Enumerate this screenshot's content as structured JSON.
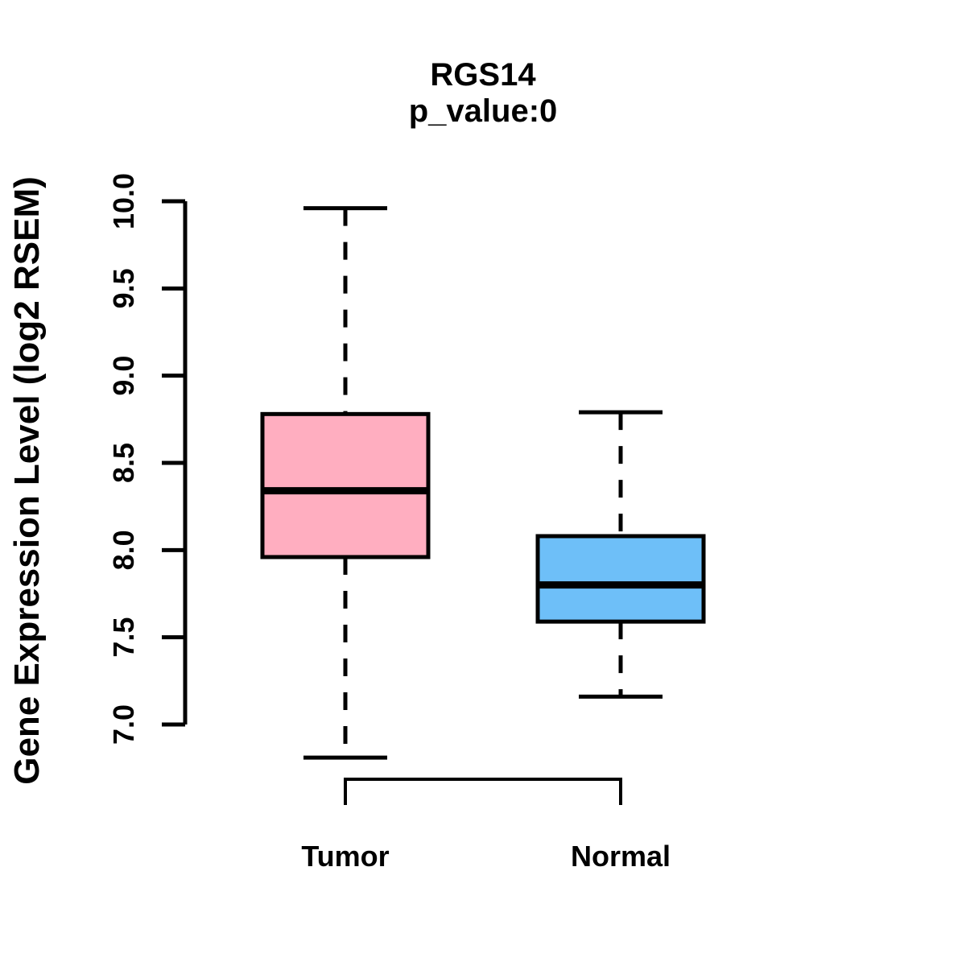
{
  "figure": {
    "title": "RGS14",
    "subtitle": "p_value:0",
    "y_axis_label": "Gene Expression Level (log2 RSEM)"
  },
  "chart_data": {
    "type": "boxplot",
    "title": "RGS14",
    "subtitle": "p_value:0",
    "ylabel": "Gene Expression Level (log2 RSEM)",
    "xlabel": "",
    "categories": [
      "Tumor",
      "Normal"
    ],
    "ylim": [
      7.0,
      10.0
    ],
    "yticks": [
      7.0,
      7.5,
      8.0,
      8.5,
      9.0,
      9.5,
      10.0
    ],
    "grid": false,
    "legend": "none",
    "series": [
      {
        "name": "Tumor",
        "box_color": "#FFAEC0",
        "border_color": "#000000",
        "whisker_low": 6.81,
        "q1": 7.96,
        "median": 8.34,
        "q3": 8.78,
        "whisker_high": 9.96,
        "whisker_style": "dashed"
      },
      {
        "name": "Normal",
        "box_color": "#6EBFF8",
        "border_color": "#000000",
        "whisker_low": 7.16,
        "q1": 7.59,
        "median": 7.8,
        "q3": 8.08,
        "whisker_high": 8.79,
        "whisker_style": "dashed"
      }
    ],
    "comparison_bracket": {
      "from": "Tumor",
      "to": "Normal",
      "position": "below-plot"
    }
  }
}
